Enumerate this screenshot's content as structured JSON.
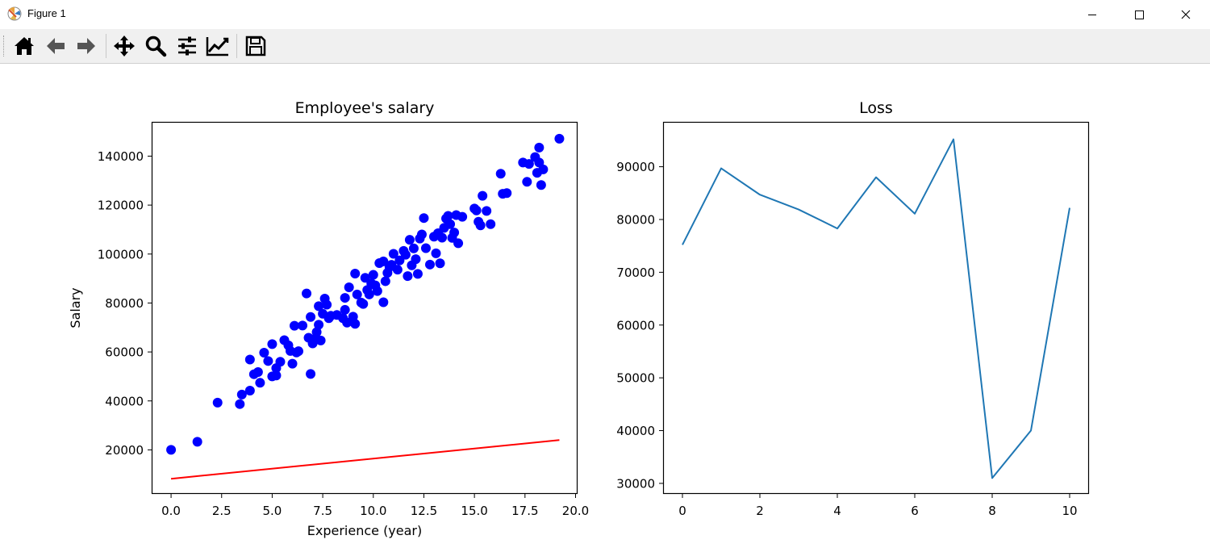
{
  "window": {
    "title": "Figure 1",
    "icon": "matplotlib-icon",
    "controls": [
      "minimize-icon",
      "maximize-icon",
      "close-icon"
    ]
  },
  "toolbar": {
    "buttons": [
      {
        "name": "home",
        "icon": "home-icon"
      },
      {
        "name": "back",
        "icon": "arrow-left-icon"
      },
      {
        "name": "forward",
        "icon": "arrow-right-icon"
      },
      {
        "name": "pan",
        "icon": "move-icon"
      },
      {
        "name": "zoom",
        "icon": "zoom-icon"
      },
      {
        "name": "configure-subplots",
        "icon": "sliders-icon"
      },
      {
        "name": "edit-axis",
        "icon": "chart-line-icon"
      },
      {
        "name": "save",
        "icon": "save-icon"
      }
    ]
  },
  "colors": {
    "scatter": "#0000ff",
    "fit_line": "#ff0000",
    "loss_line": "#1f77b4"
  },
  "chart_data": [
    {
      "type": "scatter",
      "title": "Employee's salary",
      "xlabel": "Experience (year)",
      "ylabel": "Salary",
      "xlim": [
        -0.96,
        20.1
      ],
      "ylim": [
        2000,
        154000
      ],
      "xticks": [
        0,
        2.5,
        5,
        7.5,
        10,
        12.5,
        15,
        17.5,
        20
      ],
      "xtick_labels": [
        "0.0",
        "2.5",
        "5.0",
        "7.5",
        "10.0",
        "12.5",
        "15.0",
        "17.5",
        "20.0"
      ],
      "yticks": [
        20000,
        40000,
        60000,
        80000,
        100000,
        120000,
        140000
      ],
      "ytick_labels": [
        "20000",
        "40000",
        "60000",
        "80000",
        "100000",
        "120000",
        "140000"
      ],
      "grid": false,
      "series": [
        {
          "kind": "scatter",
          "color": "#0000ff",
          "points": [
            [
              0.0,
              20000
            ],
            [
              1.3,
              23300
            ],
            [
              2.3,
              39300
            ],
            [
              3.4,
              38700
            ],
            [
              3.5,
              42600
            ],
            [
              3.9,
              44200
            ],
            [
              3.9,
              56900
            ],
            [
              4.1,
              50900
            ],
            [
              4.3,
              51800
            ],
            [
              4.4,
              47400
            ],
            [
              4.6,
              59700
            ],
            [
              4.8,
              56300
            ],
            [
              5.0,
              63200
            ],
            [
              5.0,
              50000
            ],
            [
              5.2,
              50400
            ],
            [
              5.2,
              53400
            ],
            [
              5.4,
              56000
            ],
            [
              5.6,
              64800
            ],
            [
              5.8,
              62700
            ],
            [
              5.9,
              60400
            ],
            [
              6.0,
              55200
            ],
            [
              6.1,
              70700
            ],
            [
              6.2,
              59800
            ],
            [
              6.3,
              60300
            ],
            [
              6.5,
              70800
            ],
            [
              6.7,
              83900
            ],
            [
              6.8,
              65800
            ],
            [
              6.9,
              74300
            ],
            [
              6.9,
              51000
            ],
            [
              7.0,
              63500
            ],
            [
              7.1,
              65200
            ],
            [
              7.2,
              68100
            ],
            [
              7.3,
              71100
            ],
            [
              7.3,
              78700
            ],
            [
              7.4,
              64700
            ],
            [
              7.5,
              75600
            ],
            [
              7.6,
              81800
            ],
            [
              7.7,
              79300
            ],
            [
              7.8,
              73800
            ],
            [
              7.9,
              74800
            ],
            [
              8.2,
              75100
            ],
            [
              8.5,
              73800
            ],
            [
              8.6,
              77200
            ],
            [
              8.6,
              82100
            ],
            [
              8.7,
              72000
            ],
            [
              8.8,
              86400
            ],
            [
              9.0,
              74400
            ],
            [
              9.1,
              71500
            ],
            [
              9.1,
              92000
            ],
            [
              9.2,
              83500
            ],
            [
              9.4,
              80200
            ],
            [
              9.5,
              79600
            ],
            [
              9.6,
              90300
            ],
            [
              9.7,
              85300
            ],
            [
              9.8,
              83500
            ],
            [
              9.9,
              88000
            ],
            [
              10.0,
              91500
            ],
            [
              10.1,
              87200
            ],
            [
              10.2,
              84900
            ],
            [
              10.3,
              96300
            ],
            [
              10.5,
              97000
            ],
            [
              10.5,
              80300
            ],
            [
              10.6,
              88900
            ],
            [
              10.7,
              92300
            ],
            [
              10.8,
              94700
            ],
            [
              10.9,
              95600
            ],
            [
              11.0,
              100100
            ],
            [
              11.2,
              93600
            ],
            [
              11.3,
              97400
            ],
            [
              11.5,
              101300
            ],
            [
              11.6,
              99700
            ],
            [
              11.7,
              91000
            ],
            [
              11.8,
              105800
            ],
            [
              11.9,
              95400
            ],
            [
              12.0,
              102300
            ],
            [
              12.1,
              97900
            ],
            [
              12.2,
              91900
            ],
            [
              12.3,
              106300
            ],
            [
              12.4,
              108000
            ],
            [
              12.5,
              114700
            ],
            [
              12.6,
              102400
            ],
            [
              12.8,
              95700
            ],
            [
              13.0,
              107100
            ],
            [
              13.1,
              100300
            ],
            [
              13.2,
              108500
            ],
            [
              13.3,
              96200
            ],
            [
              13.4,
              106700
            ],
            [
              13.5,
              110700
            ],
            [
              13.6,
              114500
            ],
            [
              13.7,
              115600
            ],
            [
              13.8,
              112200
            ],
            [
              13.9,
              106600
            ],
            [
              14.0,
              108800
            ],
            [
              14.1,
              115900
            ],
            [
              14.2,
              104400
            ],
            [
              14.4,
              115200
            ],
            [
              15.0,
              118600
            ],
            [
              15.1,
              117800
            ],
            [
              15.2,
              113200
            ],
            [
              15.3,
              111700
            ],
            [
              15.4,
              123800
            ],
            [
              15.6,
              117600
            ],
            [
              15.8,
              112200
            ],
            [
              16.3,
              132800
            ],
            [
              16.4,
              124600
            ],
            [
              16.6,
              124900
            ],
            [
              17.4,
              137400
            ],
            [
              17.6,
              129500
            ],
            [
              17.7,
              136800
            ],
            [
              18.0,
              139600
            ],
            [
              18.1,
              133200
            ],
            [
              18.2,
              137400
            ],
            [
              18.2,
              143500
            ],
            [
              18.3,
              128200
            ],
            [
              18.4,
              134600
            ],
            [
              19.2,
              147100
            ]
          ]
        },
        {
          "kind": "line",
          "color": "#ff0000",
          "x": [
            0.0,
            19.2
          ],
          "y": [
            8200,
            24000
          ]
        }
      ]
    },
    {
      "type": "line",
      "title": "Loss",
      "xlabel": "",
      "ylabel": "",
      "xlim": [
        -0.5,
        10.5
      ],
      "ylim": [
        28000,
        98500
      ],
      "xticks": [
        0,
        2,
        4,
        6,
        8,
        10
      ],
      "xtick_labels": [
        "0",
        "2",
        "4",
        "6",
        "8",
        "10"
      ],
      "yticks": [
        30000,
        40000,
        50000,
        60000,
        70000,
        80000,
        90000
      ],
      "ytick_labels": [
        "30000",
        "40000",
        "50000",
        "60000",
        "70000",
        "80000",
        "90000"
      ],
      "grid": false,
      "series": [
        {
          "kind": "line",
          "color": "#1f77b4",
          "x": [
            0,
            1,
            2,
            3,
            4,
            5,
            6,
            7,
            8,
            9,
            10
          ],
          "y": [
            75200,
            89700,
            84700,
            81900,
            78300,
            88000,
            81100,
            95200,
            31000,
            40000,
            82200
          ]
        }
      ]
    }
  ]
}
